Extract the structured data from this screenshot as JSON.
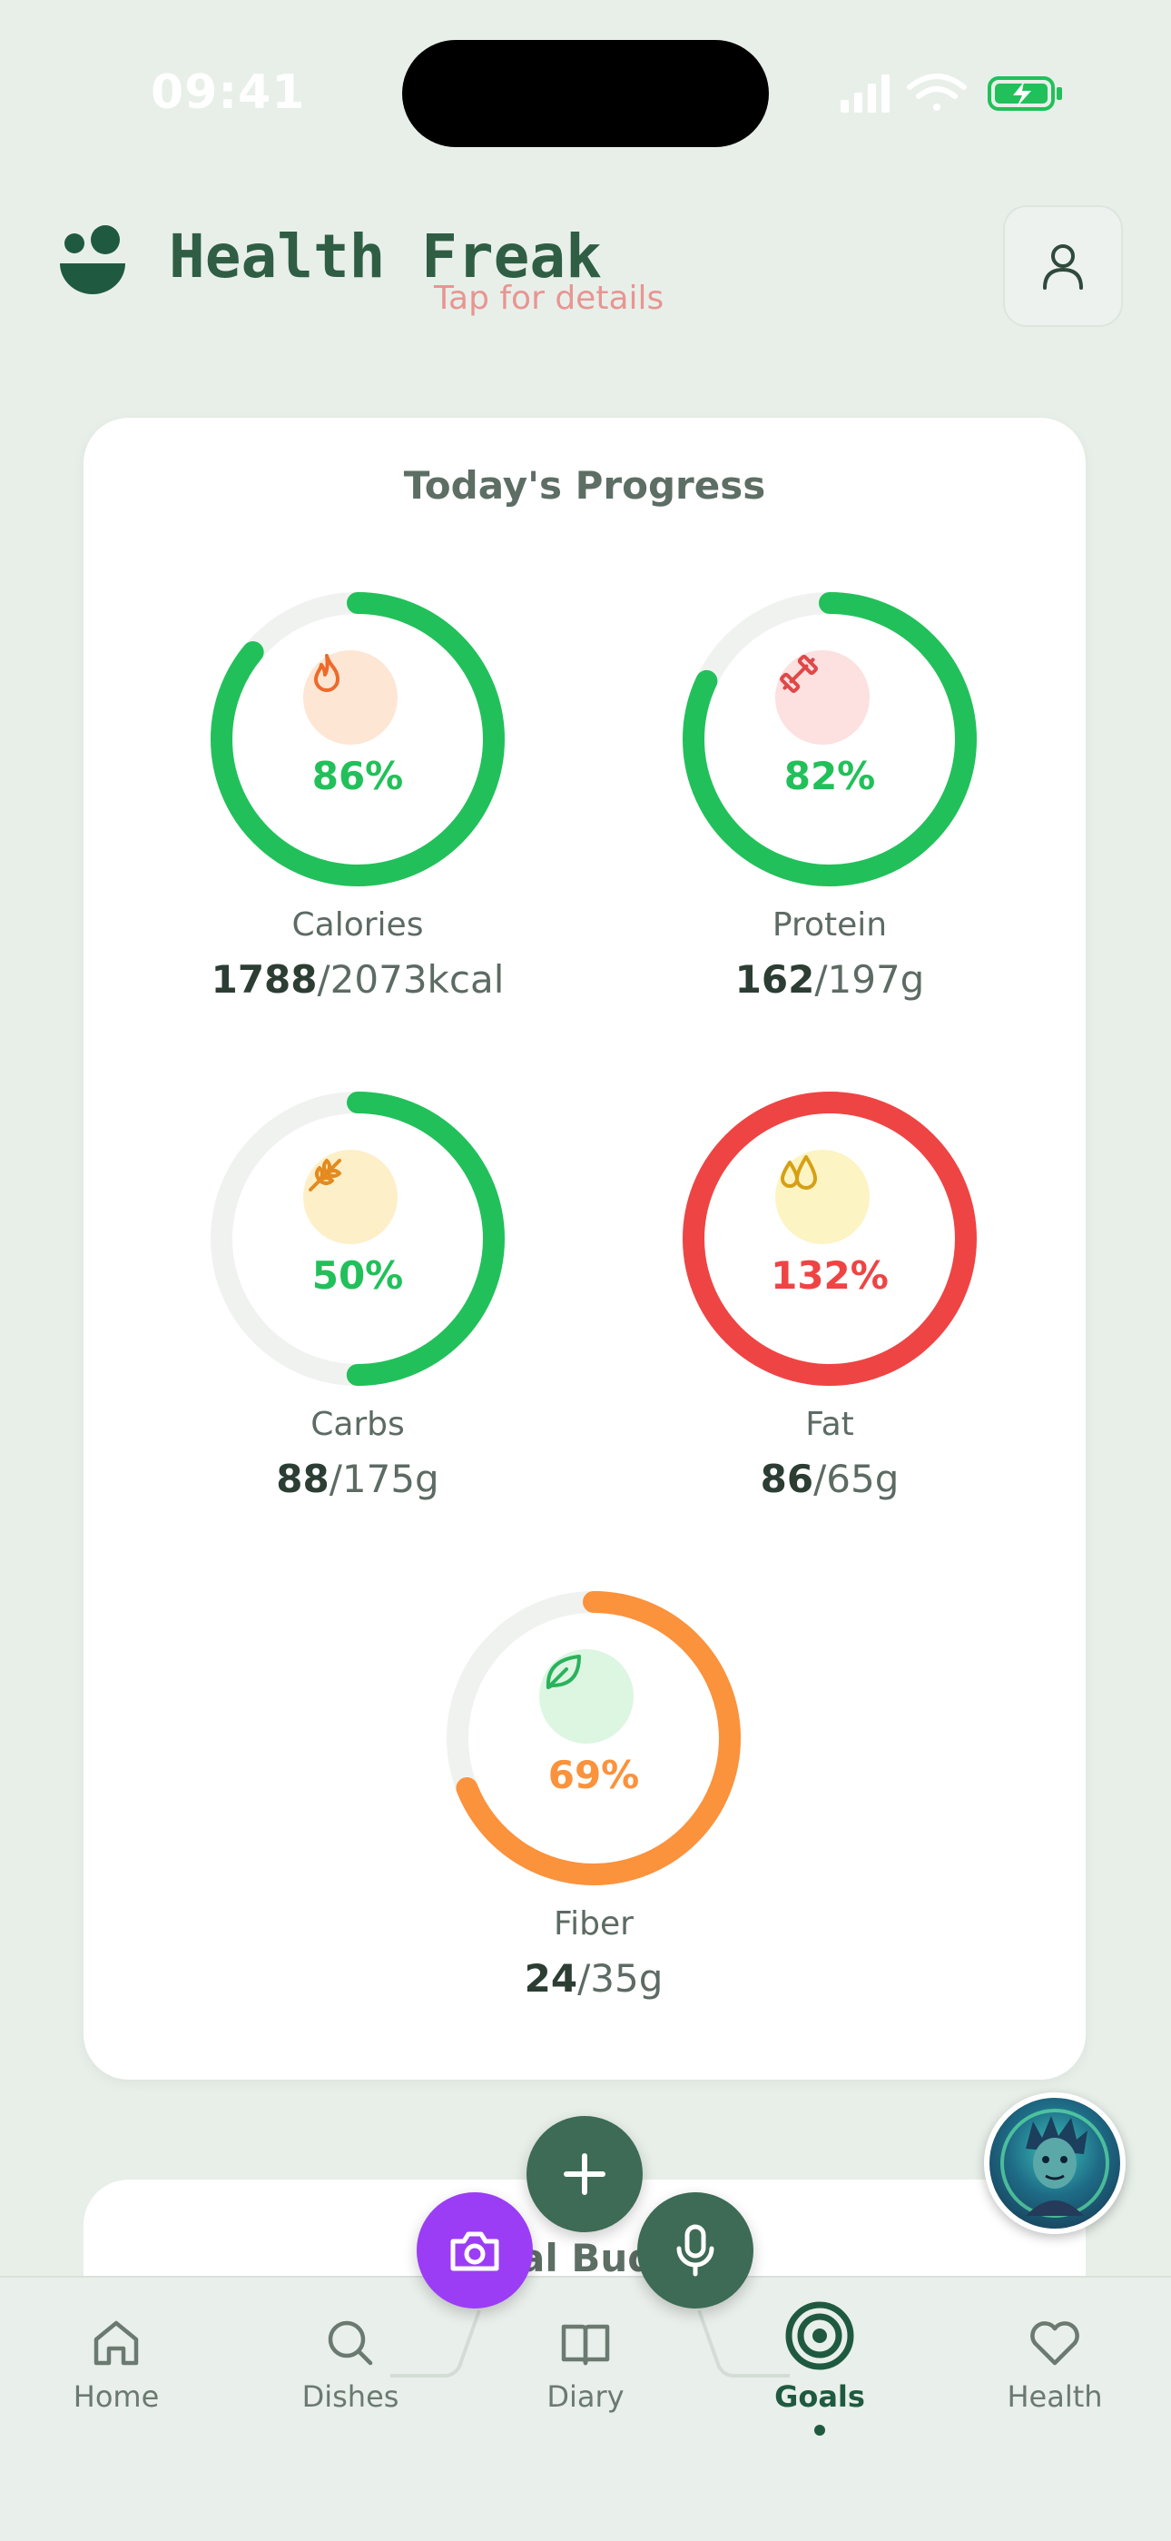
{
  "status_bar": {
    "time": "09:41"
  },
  "header": {
    "title": "Health Freak",
    "ghost_text": "Tap for details"
  },
  "progress_card": {
    "title": "Today's Progress",
    "metrics": [
      {
        "label": "Calories",
        "percent_text": "86%",
        "percent": 86,
        "current": "1788",
        "goal": "/2073kcal",
        "color": "#22c05a",
        "icon": "flame-icon",
        "icon_bg": "#fde6d4",
        "icon_color": "#ee6a2a"
      },
      {
        "label": "Protein",
        "percent_text": "82%",
        "percent": 82,
        "current": "162",
        "goal": "/197g",
        "color": "#22c05a",
        "icon": "dumbbell-icon",
        "icon_bg": "#fde0e0",
        "icon_color": "#e04848"
      },
      {
        "label": "Carbs",
        "percent_text": "50%",
        "percent": 50,
        "current": "88",
        "goal": "/175g",
        "color": "#22c05a",
        "icon": "wheat-icon",
        "icon_bg": "#fdefc8",
        "icon_color": "#e48a1e"
      },
      {
        "label": "Fat",
        "percent_text": "132%",
        "percent": 132,
        "current": "86",
        "goal": "/65g",
        "color": "#ef4444",
        "icon": "droplets-icon",
        "icon_bg": "#fdf4c4",
        "icon_color": "#d6a014"
      },
      {
        "label": "Fiber",
        "percent_text": "69%",
        "percent": 69,
        "current": "24",
        "goal": "/35g",
        "color": "#fb923c",
        "icon": "leaf-icon",
        "icon_bg": "#dcf6e2",
        "icon_color": "#2bb25c"
      }
    ]
  },
  "next_card": {
    "title_partial": "al Budge"
  },
  "tabs": [
    {
      "label": "Home",
      "icon": "home-icon"
    },
    {
      "label": "Dishes",
      "icon": "search-icon"
    },
    {
      "label": "Diary",
      "icon": "book-icon"
    },
    {
      "label": "Goals",
      "icon": "target-icon",
      "active": true
    },
    {
      "label": "Health",
      "icon": "heart-icon"
    }
  ],
  "colors": {
    "brand": "#2f5e45",
    "camera_fab": "#9b3df5",
    "fab": "#3d6b55",
    "track": "#f0f2f0"
  }
}
